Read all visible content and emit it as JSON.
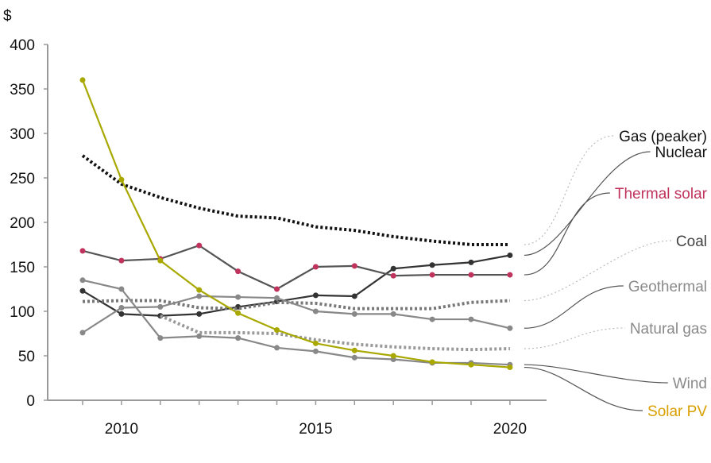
{
  "chart_data": {
    "type": "line",
    "title": "",
    "ylabel": "$",
    "xlabel": "",
    "ylim": [
      0,
      400
    ],
    "yticks": [
      0,
      50,
      100,
      150,
      200,
      250,
      300,
      350,
      400
    ],
    "xlim": [
      2009,
      2020
    ],
    "xtick_labels": [
      "2010",
      "2015",
      "2020"
    ],
    "x": [
      2009,
      2010,
      2011,
      2012,
      2013,
      2014,
      2015,
      2016,
      2017,
      2018,
      2019,
      2020
    ],
    "grid": false,
    "legend": "right (direct labels)",
    "series": [
      {
        "name": "Gas (peaker)",
        "color": "#111111",
        "label_color": "#111111",
        "dashed": true,
        "markers": false,
        "values": [
          275,
          243,
          228,
          216,
          207,
          205,
          195,
          191,
          184,
          179,
          175,
          175
        ]
      },
      {
        "name": "Nuclear",
        "color": "#333333",
        "label_color": "#111111",
        "dashed": false,
        "markers": true,
        "values": [
          123,
          97,
          95,
          97,
          105,
          111,
          118,
          117,
          148,
          152,
          155,
          163
        ]
      },
      {
        "name": "Thermal solar",
        "color": "#555555",
        "label_color": "#c0335c",
        "marker_color": "#c0335c",
        "dashed": false,
        "markers": true,
        "values": [
          168,
          157,
          159,
          174,
          145,
          125,
          150,
          151,
          140,
          141,
          141,
          141
        ]
      },
      {
        "name": "Coal",
        "color": "#777777",
        "label_color": "#444444",
        "dashed": true,
        "markers": false,
        "values": [
          111,
          112,
          112,
          104,
          103,
          110,
          109,
          103,
          103,
          103,
          110,
          112
        ]
      },
      {
        "name": "Geothermal",
        "color": "#888888",
        "label_color": "#8a8a8a",
        "dashed": false,
        "markers": true,
        "values": [
          76,
          104,
          105,
          117,
          116,
          115,
          100,
          97,
          97,
          91,
          91,
          81
        ]
      },
      {
        "name": "Natural gas",
        "color": "#999999",
        "label_color": "#8a8a8a",
        "dashed": true,
        "markers": false,
        "values": [
          null,
          null,
          95,
          76,
          76,
          75,
          68,
          63,
          60,
          58,
          57,
          58
        ]
      },
      {
        "name": "Wind",
        "color": "#888888",
        "label_color": "#8a8a8a",
        "dashed": false,
        "markers": true,
        "values": [
          135,
          125,
          70,
          72,
          70,
          59,
          55,
          48,
          46,
          42,
          42,
          40
        ]
      },
      {
        "name": "Solar PV",
        "color": "#a8a800",
        "label_color": "#d9a000",
        "dashed": false,
        "markers": true,
        "values": [
          360,
          248,
          157,
          124,
          98,
          79,
          64,
          56,
          50,
          43,
          40,
          37
        ]
      }
    ]
  }
}
